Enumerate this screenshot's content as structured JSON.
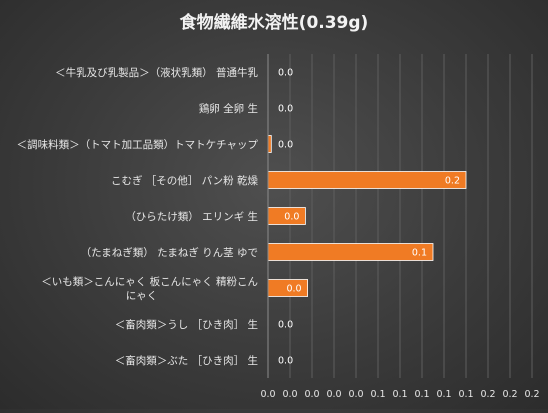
{
  "chart_data": {
    "type": "bar",
    "orientation": "horizontal",
    "title": "食物繊維水溶性(0.39g)",
    "categories": [
      "＜牛乳及び乳製品＞（液状乳類） 普通牛乳",
      "鶏卵 全卵 生",
      "＜調味料類＞（トマト加工品類）トマトケチャップ",
      "こむぎ ［その他］ パン粉 乾燥",
      "（ひらたけ類） エリンギ 生",
      "（たまねぎ類） たまねぎ りん茎 ゆで",
      "＜いも類＞こんにゃく 板こんにゃく 精粉こんにゃく",
      "＜畜肉類＞うし ［ひき肉］ 生",
      "＜畜肉類＞ぶた ［ひき肉］ 生"
    ],
    "values": [
      0,
      0,
      0.003,
      0.18,
      0.034,
      0.15,
      0.036,
      0,
      0
    ],
    "data_labels": [
      "0.0",
      "0.0",
      "0.0",
      "0.2",
      "0.0",
      "0.1",
      "0.0",
      "0.0",
      "0.0"
    ],
    "x_tick_labels": [
      "0.0",
      "0.0",
      "0.0",
      "0.0",
      "0.0",
      "0.1",
      "0.1",
      "0.1",
      "0.1",
      "0.1",
      "0.2",
      "0.2",
      "0.2"
    ],
    "xlim": [
      0,
      0.24
    ],
    "xlabel": "",
    "ylabel": "",
    "grid": true,
    "legend": "none",
    "colors": {
      "bar": "#f07b24",
      "bar_edge": "#ffffff",
      "grid": "#5e5e5e",
      "axis": "#8c8c8c",
      "text": "#e6e6e6",
      "title": "#f2f2f2"
    }
  }
}
